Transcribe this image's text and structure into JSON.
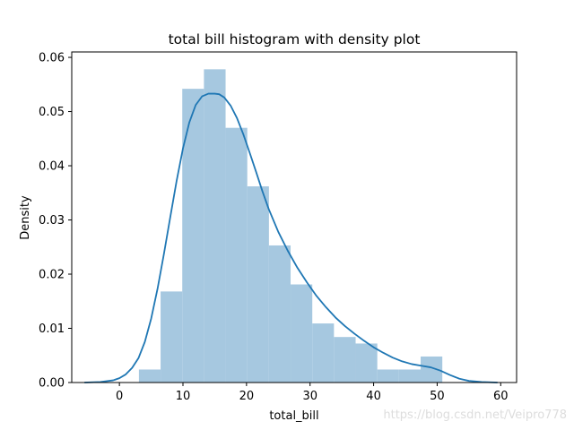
{
  "chart_data": {
    "type": "bar",
    "title": "total bill histogram with density plot",
    "xlabel": "total_bill",
    "ylabel": "Density",
    "xlim": [
      -7.5,
      62.5
    ],
    "ylim": [
      0,
      0.061
    ],
    "xticks": [
      0,
      10,
      20,
      30,
      40,
      50,
      60
    ],
    "yticks": [
      0.0,
      0.01,
      0.02,
      0.03,
      0.04,
      0.05,
      0.06
    ],
    "ytick_labels": [
      "0.00",
      "0.01",
      "0.02",
      "0.03",
      "0.04",
      "0.05",
      "0.06"
    ],
    "grid": false,
    "bar_color": "#a6c8e0",
    "line_color": "#1f77b4",
    "histogram": {
      "bin_edges": [
        3.07,
        6.48,
        9.89,
        13.3,
        16.71,
        20.12,
        23.53,
        26.94,
        30.35,
        33.76,
        37.17,
        40.58,
        43.99,
        47.4,
        50.81
      ],
      "densities": [
        0.0024,
        0.0168,
        0.0542,
        0.0578,
        0.047,
        0.0362,
        0.0253,
        0.0181,
        0.0109,
        0.0084,
        0.0072,
        0.0024,
        0.0024,
        0.0048
      ]
    },
    "density_curve": {
      "x": [
        -5.5,
        -3,
        -1,
        0,
        1,
        2,
        3,
        4,
        5,
        6,
        7,
        8,
        9,
        10,
        11,
        12,
        13,
        14,
        15,
        15.7,
        16.5,
        17.5,
        18.5,
        19.5,
        20.5,
        21.5,
        22.5,
        23.5,
        25,
        26.5,
        28,
        29.5,
        31,
        32.5,
        34,
        35.5,
        37,
        38.5,
        40,
        41.5,
        43,
        44.5,
        46,
        47.5,
        49,
        50.5,
        52,
        53.5,
        55,
        57,
        59.5
      ],
      "y": [
        0.0,
        0.0001,
        0.0004,
        0.0008,
        0.0015,
        0.0027,
        0.0045,
        0.0075,
        0.0118,
        0.0173,
        0.0237,
        0.0305,
        0.0372,
        0.0432,
        0.048,
        0.0512,
        0.0528,
        0.0533,
        0.0533,
        0.0532,
        0.0526,
        0.0511,
        0.0488,
        0.0458,
        0.0424,
        0.0389,
        0.0353,
        0.032,
        0.0278,
        0.0243,
        0.0212,
        0.0185,
        0.016,
        0.0139,
        0.012,
        0.0104,
        0.009,
        0.0077,
        0.0065,
        0.0055,
        0.0046,
        0.0039,
        0.0034,
        0.0031,
        0.0028,
        0.0022,
        0.0014,
        0.0007,
        0.0003,
        0.0001,
        0.0
      ]
    }
  },
  "watermark": "https://blog.csdn.net/Veipro778"
}
